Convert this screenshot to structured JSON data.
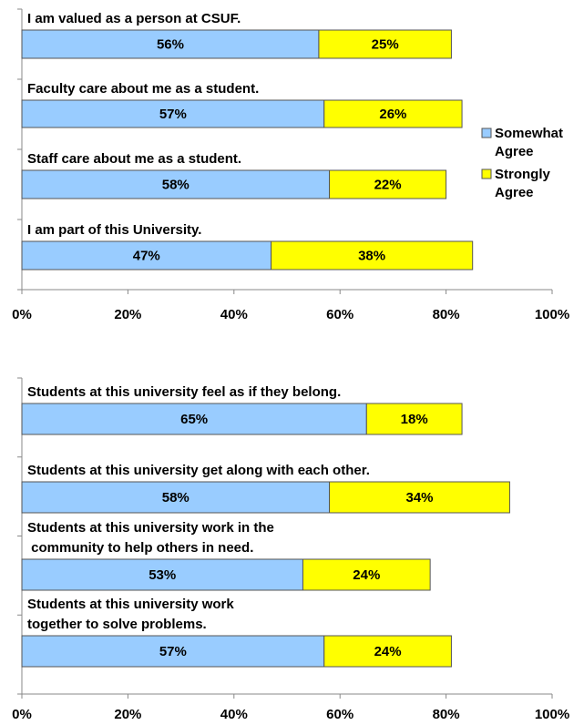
{
  "chart_data": [
    {
      "type": "stacked-bar-horizontal",
      "categories": [
        "I am valued as a person at CSUF.",
        "Faculty care about me as a student.",
        "Staff care about me as a student.",
        "I am part of this University."
      ],
      "series": [
        {
          "name": "Somewhat\nAgree",
          "color": "#99ccff",
          "values": [
            56,
            57,
            58,
            47
          ],
          "value_labels": [
            "56%",
            "57%",
            "58%",
            "47%"
          ]
        },
        {
          "name": "Strongly\nAgree",
          "color": "#ffff00",
          "values": [
            25,
            26,
            22,
            38
          ],
          "value_labels": [
            "25%",
            "26%",
            "22%",
            "38%"
          ]
        }
      ],
      "xlim": [
        0,
        100
      ],
      "xticks": [
        {
          "value": 0,
          "label": "0%"
        },
        {
          "value": 20,
          "label": "20%"
        },
        {
          "value": 40,
          "label": "40%"
        },
        {
          "value": 60,
          "label": "60%"
        },
        {
          "value": 80,
          "label": "80%"
        },
        {
          "value": 100,
          "label": "100%"
        }
      ],
      "legend": "right"
    },
    {
      "type": "stacked-bar-horizontal",
      "categories": [
        "Students at this university feel as if they belong.",
        "Students at this university get along with each other.",
        "Students at this university work in the\n community to help others in need.",
        "Students at this university work\ntogether to solve problems."
      ],
      "series": [
        {
          "color": "#99ccff",
          "values": [
            65,
            58,
            53,
            57
          ],
          "value_labels": [
            "65%",
            "58%",
            "53%",
            "57%"
          ]
        },
        {
          "color": "#ffff00",
          "values": [
            18,
            34,
            24,
            24
          ],
          "value_labels": [
            "18%",
            "34%",
            "24%",
            "24%"
          ]
        }
      ],
      "xlim": [
        0,
        100
      ],
      "xticks": [
        {
          "value": 0,
          "label": "0%"
        },
        {
          "value": 20,
          "label": "20%"
        },
        {
          "value": 40,
          "label": "40%"
        },
        {
          "value": 60,
          "label": "60%"
        },
        {
          "value": 80,
          "label": "80%"
        },
        {
          "value": 100,
          "label": "100%"
        }
      ]
    }
  ]
}
